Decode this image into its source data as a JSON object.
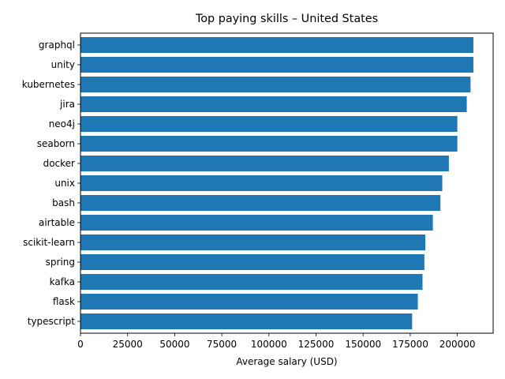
{
  "chart_data": {
    "type": "bar",
    "orientation": "horizontal",
    "title": "Top paying skills – United States",
    "xlabel": "Average salary (USD)",
    "ylabel": "",
    "categories": [
      "graphql",
      "unity",
      "kubernetes",
      "jira",
      "neo4j",
      "seaborn",
      "docker",
      "unix",
      "bash",
      "airtable",
      "scikit-learn",
      "spring",
      "kafka",
      "flask",
      "typescript"
    ],
    "values": [
      208500,
      208500,
      207000,
      205000,
      200000,
      200000,
      195500,
      192000,
      191000,
      187000,
      183000,
      182500,
      181500,
      179000,
      176000
    ],
    "xlim": [
      0,
      219000
    ],
    "xticks": [
      0,
      25000,
      50000,
      75000,
      100000,
      125000,
      150000,
      175000,
      200000
    ],
    "bar_color": "#1f77b4",
    "grid": false
  }
}
